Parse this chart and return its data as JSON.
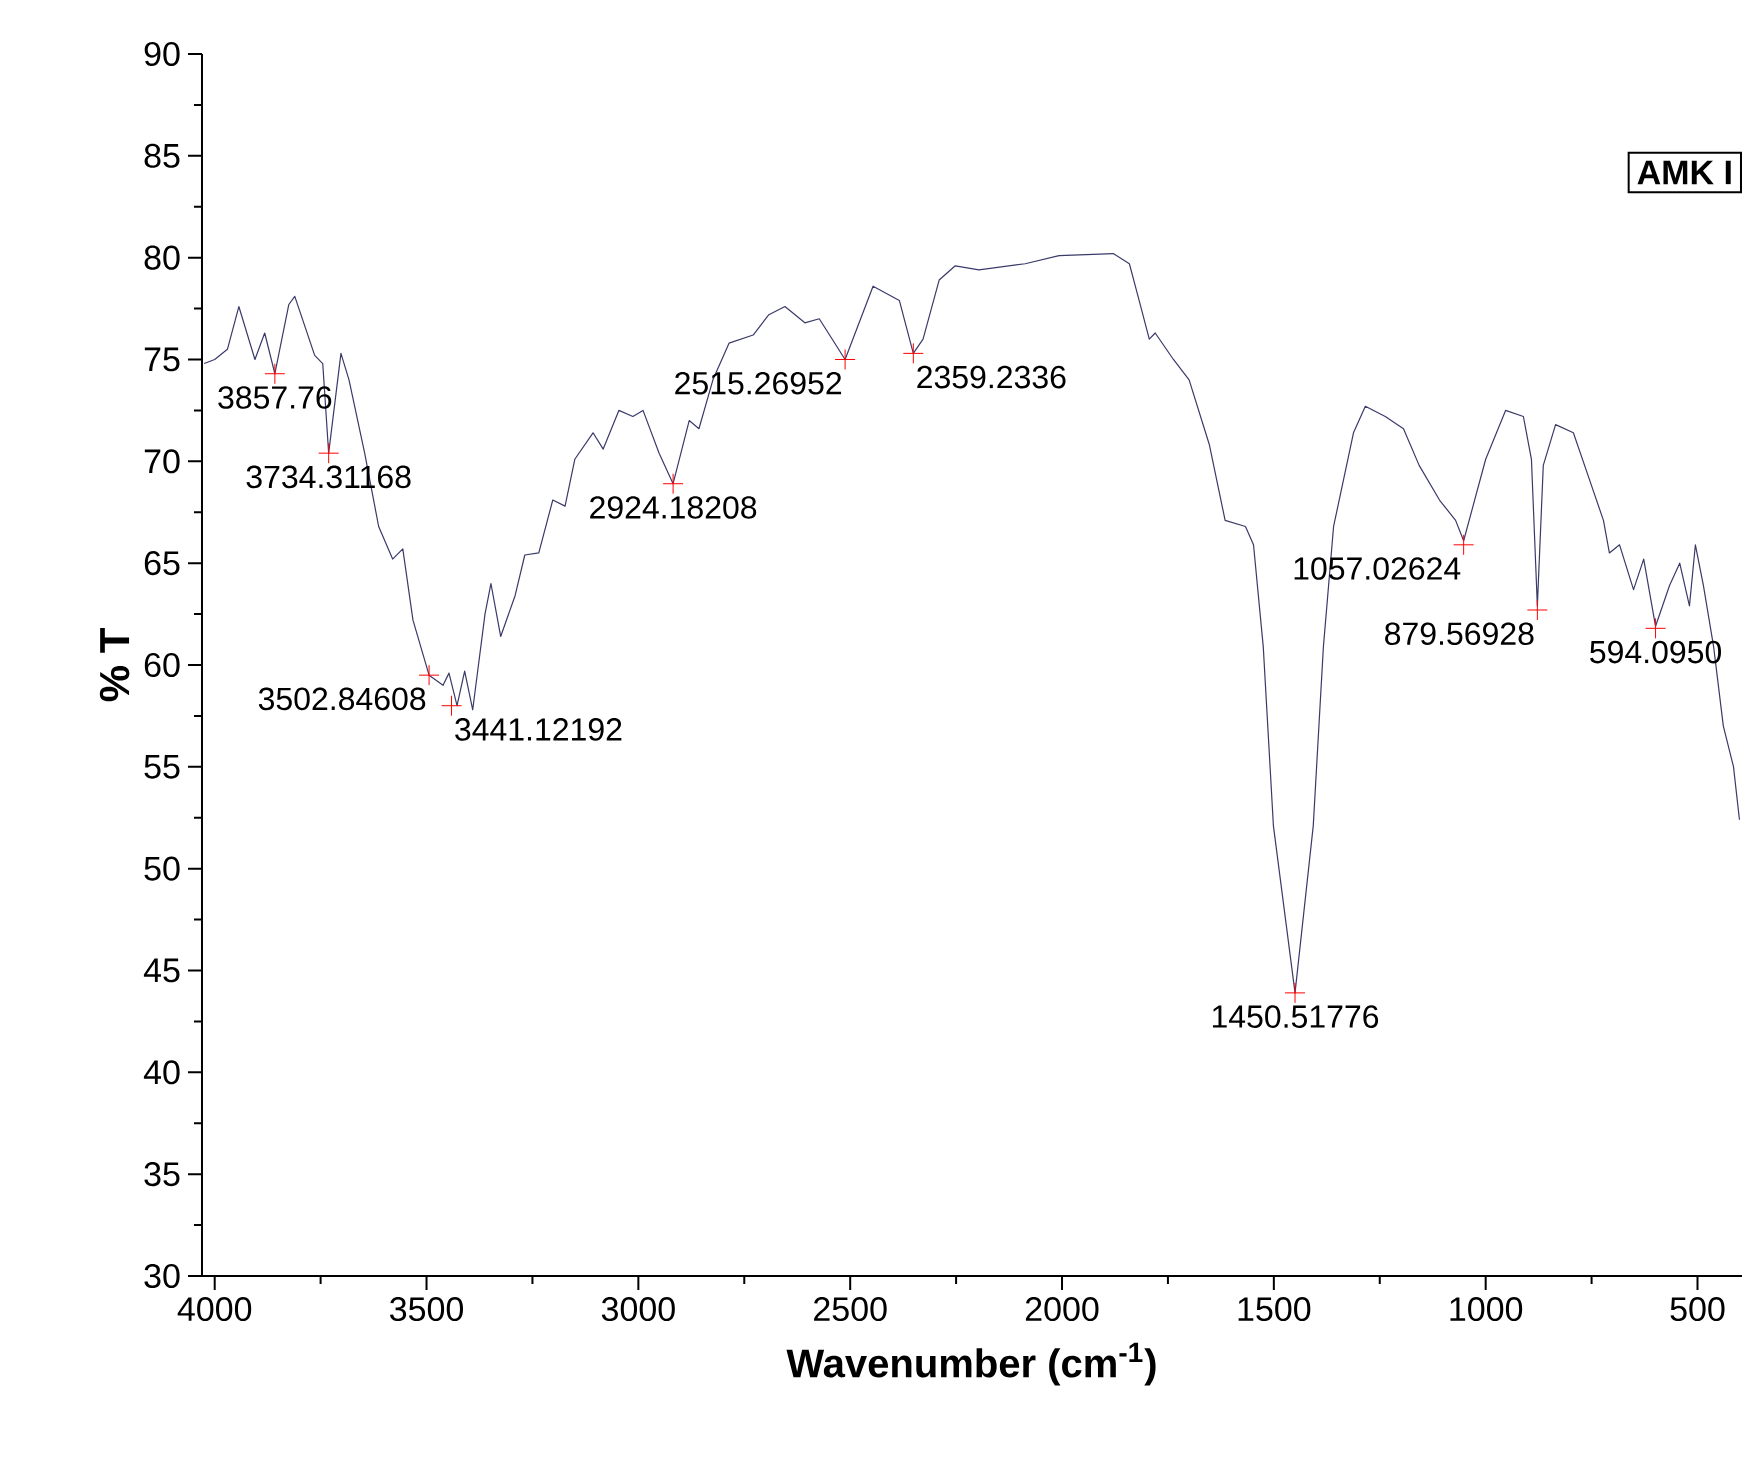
{
  "chart_data": {
    "type": "line",
    "xlabel": "Wavenumber (cm$^{-1}$)",
    "ylabel": "% T",
    "xlim": [
      4030,
      395
    ],
    "ylim": [
      30,
      90
    ],
    "xticks": [
      4000,
      3500,
      3000,
      2500,
      2000,
      1500,
      1000,
      500
    ],
    "yticks": [
      30,
      35,
      40,
      45,
      50,
      55,
      60,
      65,
      70,
      75,
      80,
      85,
      90
    ],
    "grid": false,
    "marker": "none",
    "line_style": "solid",
    "series": [
      {
        "color": "#3a3a6a",
        "x": [
          4025,
          4000,
          3970,
          3943,
          3905,
          3882,
          3858,
          3825,
          3811,
          3764,
          3745,
          3731,
          3702,
          3683,
          3646,
          3613,
          3580,
          3556,
          3532,
          3494,
          3461,
          3447,
          3428,
          3410,
          3391,
          3362,
          3348,
          3325,
          3291,
          3268,
          3235,
          3202,
          3173,
          3150,
          3107,
          3083,
          3046,
          3013,
          2989,
          2951,
          2918,
          2880,
          2857,
          2824,
          2786,
          2729,
          2692,
          2654,
          2607,
          2573,
          2512,
          2446,
          2384,
          2351,
          2328,
          2290,
          2252,
          2196,
          2087,
          2007,
          1879,
          1841,
          1818,
          1794,
          1780,
          1737,
          1700,
          1652,
          1615,
          1567,
          1548,
          1525,
          1501,
          1450,
          1407,
          1383,
          1359,
          1312,
          1284,
          1237,
          1194,
          1157,
          1109,
          1071,
          1052,
          1000,
          953,
          911,
          892,
          878,
          864,
          835,
          793,
          755,
          722,
          708,
          684,
          651,
          627,
          599,
          566,
          542,
          519,
          505,
          486,
          462,
          439,
          415,
          401
        ],
        "values": [
          74.8,
          75.0,
          75.5,
          77.6,
          75.0,
          76.3,
          74.3,
          77.7,
          78.1,
          75.2,
          74.8,
          70.4,
          75.3,
          74.0,
          70.4,
          66.8,
          65.2,
          65.7,
          62.2,
          59.5,
          59.0,
          59.6,
          58.0,
          59.7,
          57.8,
          62.5,
          64.0,
          61.4,
          63.4,
          65.4,
          65.5,
          68.1,
          67.8,
          70.1,
          71.4,
          70.6,
          72.5,
          72.2,
          72.5,
          70.4,
          68.9,
          72.0,
          71.6,
          74.0,
          75.8,
          76.2,
          77.2,
          77.6,
          76.8,
          77.0,
          75.0,
          78.6,
          77.9,
          75.3,
          76.0,
          78.9,
          79.6,
          79.4,
          79.7,
          80.1,
          80.2,
          79.7,
          77.9,
          76.0,
          76.3,
          75.0,
          74.0,
          70.8,
          67.1,
          66.8,
          65.9,
          60.9,
          52.1,
          43.9,
          52.1,
          60.9,
          66.8,
          71.4,
          72.7,
          72.2,
          71.6,
          69.8,
          68.1,
          67.1,
          66.1,
          70.1,
          72.5,
          72.2,
          70.1,
          62.9,
          69.8,
          71.8,
          71.4,
          69.1,
          67.1,
          65.5,
          65.9,
          63.7,
          65.2,
          61.9,
          63.9,
          65.0,
          62.9,
          65.9,
          63.9,
          60.9,
          57.0,
          55.0,
          52.4
        ]
      }
    ],
    "annotations": [
      "AMK I",
      {
        "text": "3857.76",
        "x": 3858,
        "y": 74.3
      },
      {
        "text": "3734.31168",
        "x": 3731,
        "y": 70.4
      },
      {
        "text": "3502.84608",
        "x": 3494,
        "y": 59.5
      },
      {
        "text": "3441.12192",
        "x": 3441,
        "y": 58.0
      },
      {
        "text": "2924.18208",
        "x": 2918,
        "y": 68.9
      },
      {
        "text": "2515.26952",
        "x": 2512,
        "y": 75.0
      },
      {
        "text": "2359.2336",
        "x": 2351,
        "y": 75.3
      },
      {
        "text": "1450.51776",
        "x": 1450,
        "y": 43.9
      },
      {
        "text": "1057.02624",
        "x": 1052,
        "y": 65.9
      },
      {
        "text": "879.56928",
        "x": 878,
        "y": 62.7
      },
      {
        "text": "594.0950",
        "x": 599,
        "y": 61.8
      }
    ]
  }
}
